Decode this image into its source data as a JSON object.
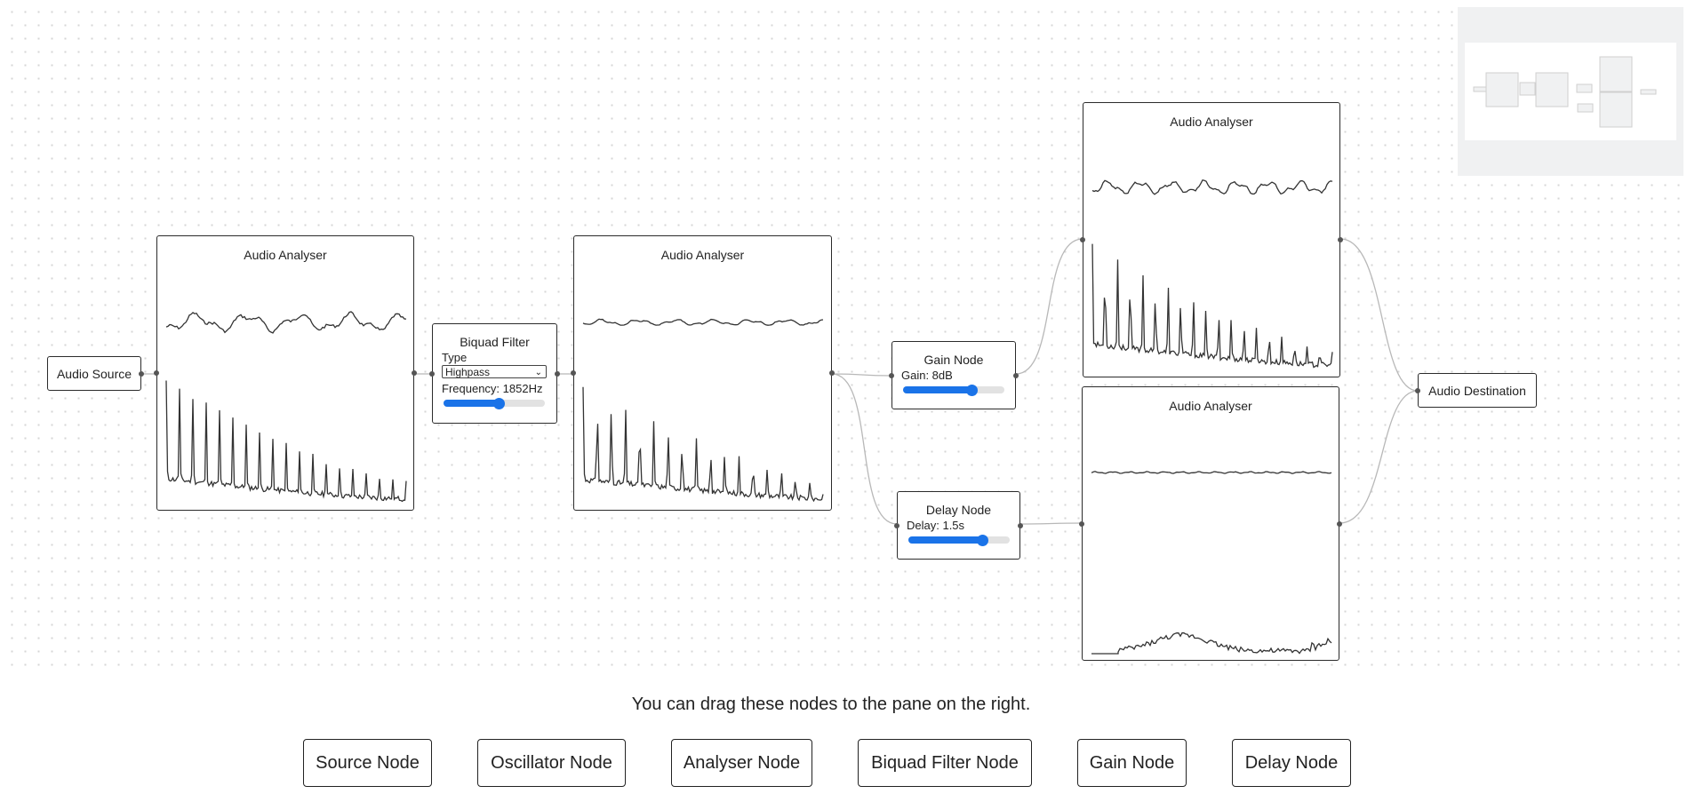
{
  "nodes": {
    "audio_source": {
      "title": "Audio Source"
    },
    "analyser_1": {
      "title": "Audio Analyser"
    },
    "biquad_filter": {
      "title": "Biquad Filter",
      "type_label": "Type",
      "type_value": "Highpass",
      "frequency_label": "Frequency: 1852Hz",
      "frequency_level": 0.55
    },
    "analyser_2": {
      "title": "Audio Analyser"
    },
    "gain_node": {
      "title": "Gain Node",
      "gain_label": "Gain: 8dB",
      "gain_level": 0.68
    },
    "delay_node": {
      "title": "Delay Node",
      "delay_label": "Delay: 1.5s",
      "delay_level": 0.73
    },
    "analyser_3": {
      "title": "Audio Analyser"
    },
    "analyser_4": {
      "title": "Audio Analyser"
    },
    "audio_destination": {
      "title": "Audio Destination"
    }
  },
  "palette": {
    "hint": "You can drag these nodes to the pane on the right.",
    "buttons": [
      {
        "label": "Source Node"
      },
      {
        "label": "Oscillator Node"
      },
      {
        "label": "Analyser Node"
      },
      {
        "label": "Biquad Filter Node"
      },
      {
        "label": "Gain Node"
      },
      {
        "label": "Delay Node"
      }
    ]
  },
  "colors": {
    "accent": "#1a73e8",
    "edge": "#b8b8b8",
    "minimap_bg": "#f0f1f2"
  }
}
